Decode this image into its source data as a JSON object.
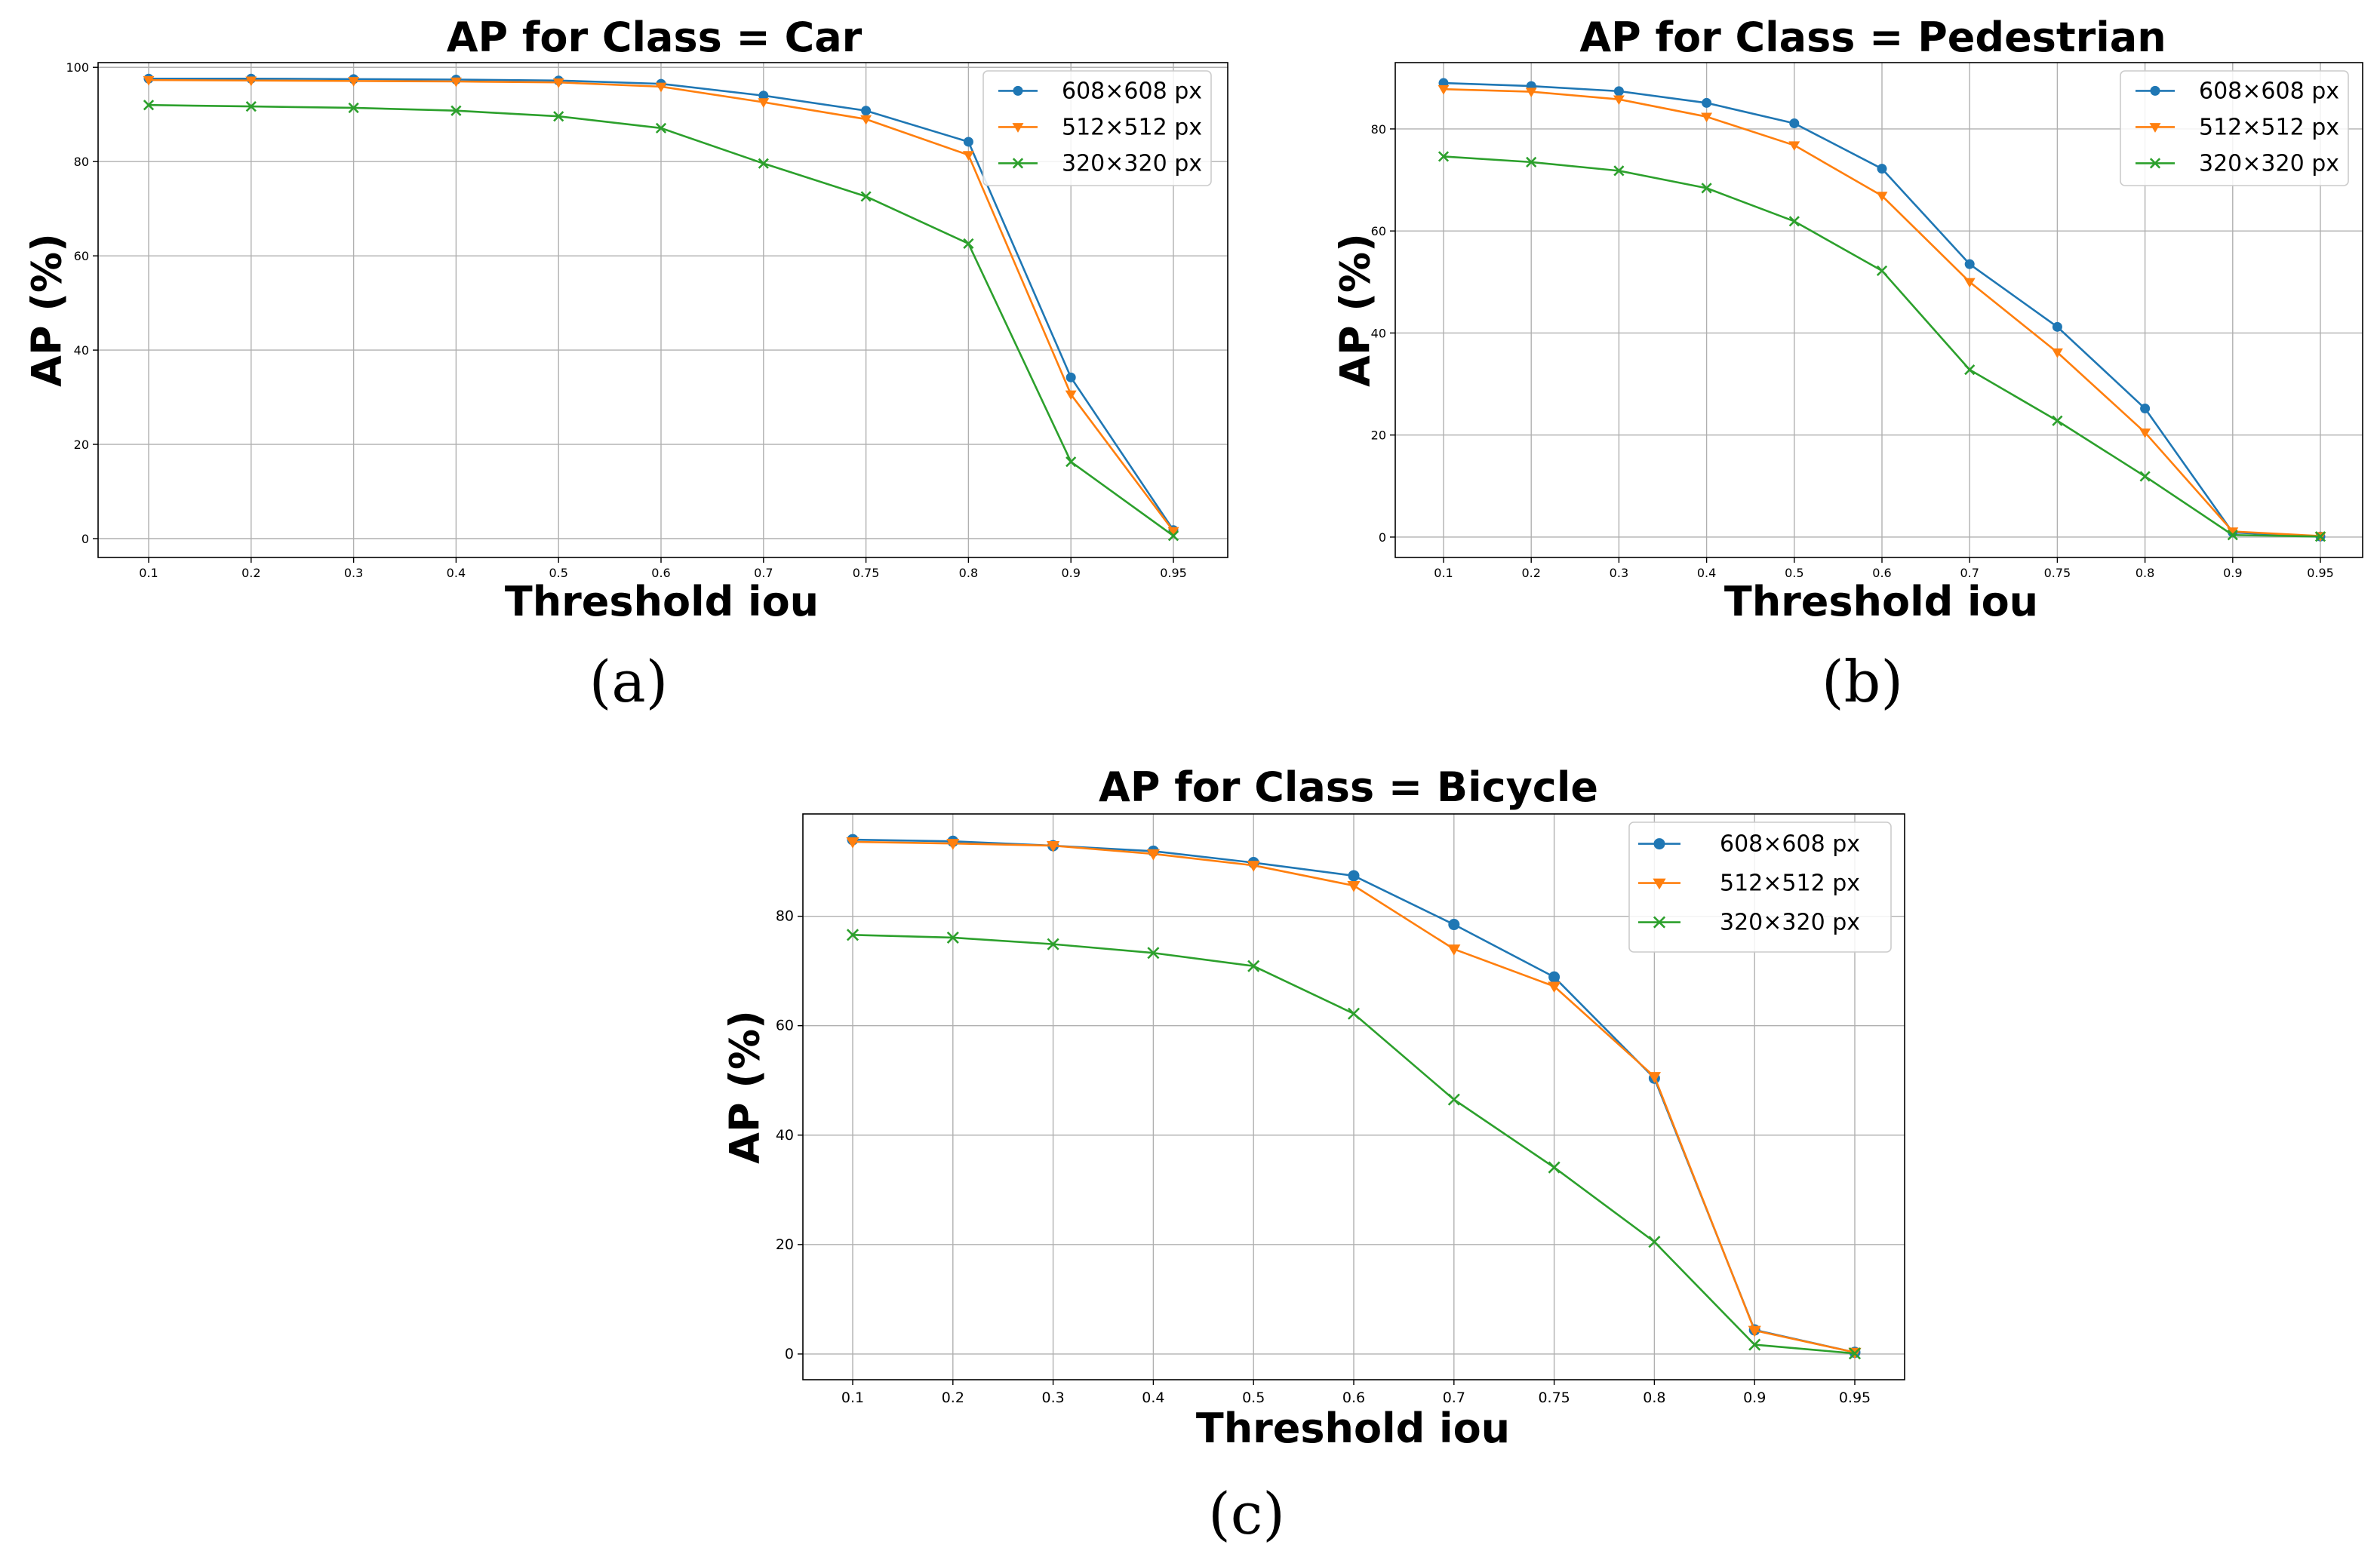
{
  "chart_data": [
    {
      "type": "line",
      "title": "AP for Class = Car",
      "xlabel": "Threshold iou",
      "ylabel": "AP (%)",
      "caption": "(a)",
      "categories": [
        "0.1",
        "0.2",
        "0.3",
        "0.4",
        "0.5",
        "0.6",
        "0.7",
        "0.75",
        "0.8",
        "0.9",
        "0.95"
      ],
      "ylim": [
        -4,
        101
      ],
      "yticks": [
        0,
        20,
        40,
        60,
        80,
        100
      ],
      "grid": true,
      "legend": "top-right",
      "series": [
        {
          "name": "608×608 px",
          "color": "#1f77b4",
          "marker": "circle",
          "values": [
            97.6,
            97.6,
            97.5,
            97.4,
            97.2,
            96.5,
            94.0,
            90.8,
            84.2,
            34.2,
            1.8
          ]
        },
        {
          "name": "512×512 px",
          "color": "#ff7f0e",
          "marker": "triangle-down",
          "values": [
            97.3,
            97.2,
            97.1,
            97.0,
            96.8,
            95.9,
            92.6,
            89.0,
            81.4,
            30.6,
            1.6
          ]
        },
        {
          "name": "320×320 px",
          "color": "#2ca02c",
          "marker": "x",
          "values": [
            92.0,
            91.7,
            91.4,
            90.8,
            89.6,
            87.1,
            79.6,
            72.6,
            62.6,
            16.3,
            0.6
          ]
        }
      ]
    },
    {
      "type": "line",
      "title": "AP for Class = Pedestrian",
      "xlabel": "Threshold iou",
      "ylabel": "AP (%)",
      "caption": "(b)",
      "categories": [
        "0.1",
        "0.2",
        "0.3",
        "0.4",
        "0.5",
        "0.6",
        "0.7",
        "0.75",
        "0.8",
        "0.9",
        "0.95"
      ],
      "ylim": [
        -4,
        93
      ],
      "yticks": [
        0,
        20,
        40,
        60,
        80
      ],
      "grid": true,
      "legend": "top-right",
      "series": [
        {
          "name": "608×608 px",
          "color": "#1f77b4",
          "marker": "circle",
          "values": [
            89.0,
            88.4,
            87.4,
            85.1,
            81.1,
            72.2,
            53.5,
            41.2,
            25.2,
            0.9,
            0.1
          ]
        },
        {
          "name": "512×512 px",
          "color": "#ff7f0e",
          "marker": "triangle-down",
          "values": [
            87.8,
            87.3,
            85.8,
            82.4,
            76.8,
            66.9,
            50.0,
            36.2,
            20.5,
            1.1,
            0.2
          ]
        },
        {
          "name": "320×320 px",
          "color": "#2ca02c",
          "marker": "x",
          "values": [
            74.6,
            73.5,
            71.8,
            68.4,
            61.9,
            52.2,
            32.8,
            22.8,
            11.9,
            0.4,
            0.1
          ]
        }
      ]
    },
    {
      "type": "line",
      "title": "AP for Class = Bicycle",
      "xlabel": "Threshold iou",
      "ylabel": "AP (%)",
      "caption": "(c)",
      "categories": [
        "0.1",
        "0.2",
        "0.3",
        "0.4",
        "0.5",
        "0.6",
        "0.7",
        "0.75",
        "0.8",
        "0.9",
        "0.95"
      ],
      "ylim": [
        -4.7,
        98.7
      ],
      "yticks": [
        0,
        20,
        40,
        60,
        80
      ],
      "grid": true,
      "legend": "top-right",
      "series": [
        {
          "name": "608×608 px",
          "color": "#1f77b4",
          "marker": "circle",
          "values": [
            94.0,
            93.7,
            92.9,
            91.9,
            89.8,
            87.4,
            78.5,
            68.9,
            50.4,
            4.4,
            0.3
          ]
        },
        {
          "name": "512×512 px",
          "color": "#ff7f0e",
          "marker": "triangle-down",
          "values": [
            93.6,
            93.3,
            92.9,
            91.4,
            89.3,
            85.6,
            74.0,
            67.2,
            50.7,
            4.3,
            0.3
          ]
        },
        {
          "name": "320×320 px",
          "color": "#2ca02c",
          "marker": "x",
          "values": [
            76.6,
            76.1,
            74.9,
            73.3,
            70.9,
            62.2,
            46.5,
            34.1,
            20.5,
            1.7,
            0.1
          ]
        }
      ]
    }
  ]
}
